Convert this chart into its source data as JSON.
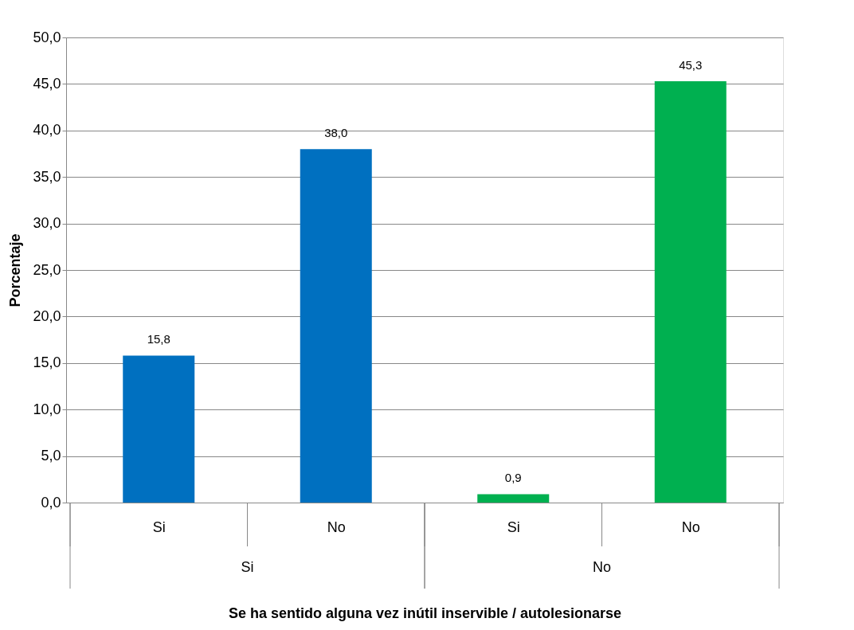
{
  "chart_data": {
    "type": "bar",
    "xlabel": "Se ha sentido alguna vez inútil  inservible / autolesionarse",
    "ylabel": "Porcentaje",
    "categories": [
      "Si",
      "No",
      "Si",
      "No"
    ],
    "series": [
      {
        "color": "#0070c0",
        "values": [
          15.8,
          38.0,
          null,
          null
        ],
        "value_labels": [
          "15,8",
          "38,0",
          null,
          null
        ]
      },
      {
        "color": "#00b050",
        "values": [
          null,
          null,
          0.9,
          45.3
        ],
        "value_labels": [
          null,
          null,
          "0,9",
          "45,3"
        ]
      }
    ],
    "ylim": [
      0,
      50
    ],
    "yticks": [
      {
        "value": 0,
        "label": "0,0"
      },
      {
        "value": 5,
        "label": "5,0"
      },
      {
        "value": 10,
        "label": "10,0"
      },
      {
        "value": 15,
        "label": "15,0"
      },
      {
        "value": 20,
        "label": "20,0"
      },
      {
        "value": 25,
        "label": "25,0"
      },
      {
        "value": 30,
        "label": "30,0"
      },
      {
        "value": 35,
        "label": "35,0"
      },
      {
        "value": 40,
        "label": "40,0"
      },
      {
        "value": 45,
        "label": "45,0"
      },
      {
        "value": 50,
        "label": "50,0"
      }
    ],
    "annotations": [
      "Si",
      "No"
    ],
    "grid": "y",
    "legend": false
  }
}
